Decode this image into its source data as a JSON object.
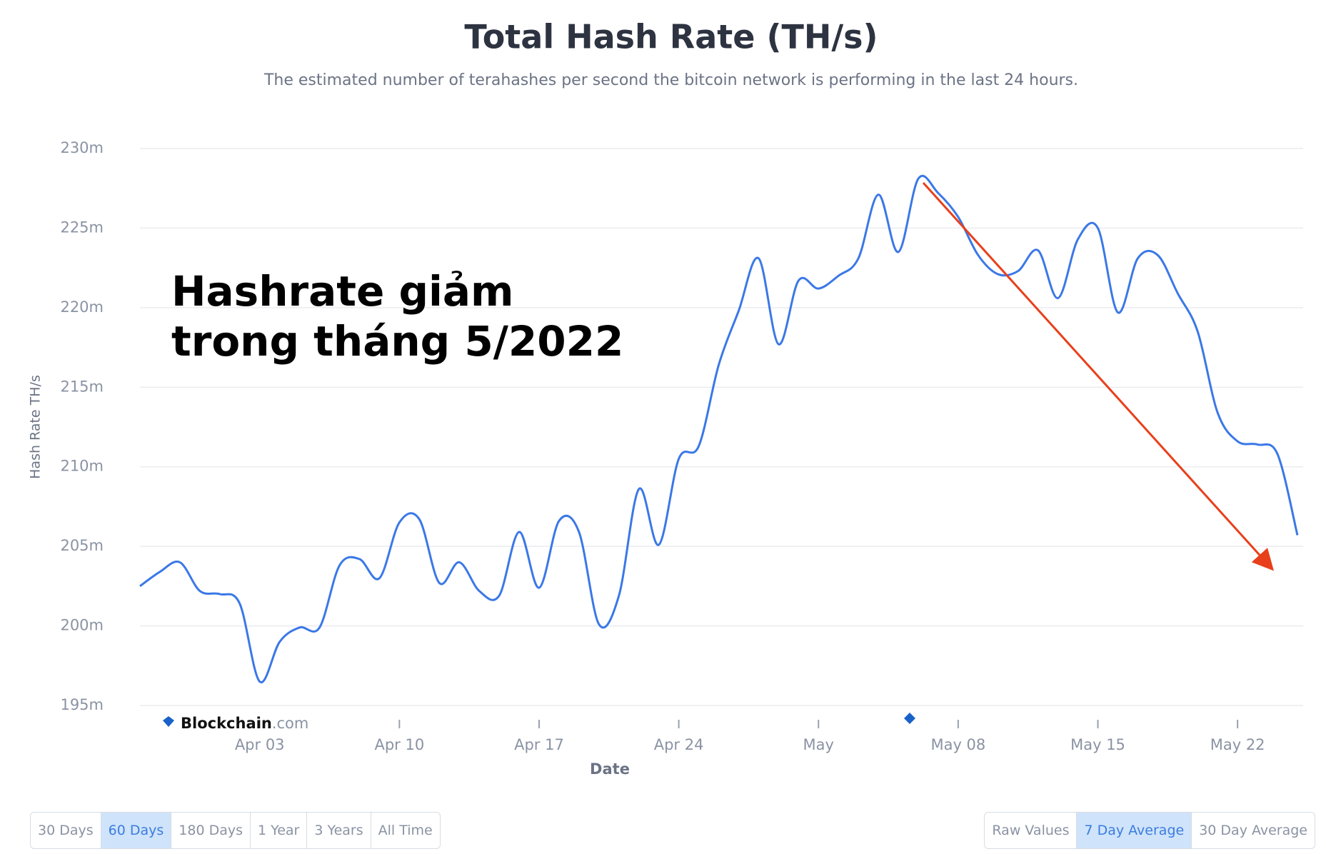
{
  "chart_data": {
    "type": "line",
    "title": "Total Hash Rate (TH/s)",
    "subtitle": "The estimated number of terahashes per second the bitcoin network is performing in the last 24 hours.",
    "y_label": "Hash Rate TH/s",
    "x_label": "Date",
    "annotation": [
      "Hashrate giảm",
      "trong tháng 5/2022"
    ],
    "watermark": {
      "brand": "Blockchain",
      "suffix": ".com"
    },
    "x": [
      "Mar 28",
      "Mar 29",
      "Mar 30",
      "Mar 31",
      "Apr 01",
      "Apr 02",
      "Apr 03",
      "Apr 04",
      "Apr 05",
      "Apr 06",
      "Apr 07",
      "Apr 08",
      "Apr 09",
      "Apr 10",
      "Apr 11",
      "Apr 12",
      "Apr 13",
      "Apr 14",
      "Apr 15",
      "Apr 16",
      "Apr 17",
      "Apr 18",
      "Apr 19",
      "Apr 20",
      "Apr 21",
      "Apr 22",
      "Apr 23",
      "Apr 24",
      "Apr 25",
      "Apr 26",
      "Apr 27",
      "Apr 28",
      "Apr 29",
      "Apr 30",
      "May 01",
      "May 02",
      "May 03",
      "May 04",
      "May 05",
      "May 06",
      "May 07",
      "May 08",
      "May 09",
      "May 10",
      "May 11",
      "May 12",
      "May 13",
      "May 14",
      "May 15",
      "May 16",
      "May 17",
      "May 18",
      "May 19",
      "May 20",
      "May 21",
      "May 22",
      "May 23",
      "May 24",
      "May 25"
    ],
    "series": [
      {
        "name": "Hash Rate",
        "color": "#3b78e7",
        "values": [
          202.5,
          203.4,
          204.0,
          202.2,
          202.0,
          201.4,
          196.5,
          199.0,
          199.9,
          199.9,
          203.8,
          204.2,
          203.0,
          206.5,
          206.7,
          202.7,
          204.0,
          202.2,
          201.9,
          205.9,
          202.4,
          206.6,
          205.9,
          200.1,
          201.9,
          208.6,
          205.1,
          210.5,
          211.3,
          216.4,
          219.8,
          223.1,
          217.7,
          221.7,
          221.2,
          222.0,
          223.1,
          227.1,
          223.5,
          228.1,
          227.2,
          225.7,
          223.3,
          222.1,
          222.3,
          223.6,
          220.6,
          224.3,
          225.0,
          219.7,
          223.1,
          223.3,
          220.9,
          218.5,
          213.4,
          211.6,
          211.4,
          210.8,
          205.7
        ]
      }
    ],
    "xlim": [
      "Mar 28",
      "May 25"
    ],
    "xticks": [
      {
        "value": "Apr 03",
        "label": "Apr 03"
      },
      {
        "value": "Apr 10",
        "label": "Apr 10"
      },
      {
        "value": "Apr 17",
        "label": "Apr 17"
      },
      {
        "value": "Apr 24",
        "label": "Apr 24"
      },
      {
        "value": "May 01",
        "label": "May"
      },
      {
        "value": "May 08",
        "label": "May 08"
      },
      {
        "value": "May 15",
        "label": "May 15"
      },
      {
        "value": "May 22",
        "label": "May 22"
      }
    ],
    "ylim": [
      195,
      230
    ],
    "yticks": [
      {
        "value": 195,
        "label": "195m"
      },
      {
        "value": 200,
        "label": "200m"
      },
      {
        "value": 205,
        "label": "205m"
      },
      {
        "value": 210,
        "label": "210m"
      },
      {
        "value": 215,
        "label": "215m"
      },
      {
        "value": 220,
        "label": "220m"
      },
      {
        "value": 225,
        "label": "225m"
      },
      {
        "value": 230,
        "label": "230m"
      }
    ],
    "grid": true
  },
  "controls": {
    "ranges": [
      {
        "label": "30 Days",
        "selected": false
      },
      {
        "label": "60 Days",
        "selected": true
      },
      {
        "label": "180 Days",
        "selected": false
      },
      {
        "label": "1 Year",
        "selected": false
      },
      {
        "label": "3 Years",
        "selected": false
      },
      {
        "label": "All Time",
        "selected": false
      }
    ],
    "averages": [
      {
        "label": "Raw Values",
        "selected": false
      },
      {
        "label": "7 Day Average",
        "selected": true
      },
      {
        "label": "30 Day Average",
        "selected": false
      }
    ]
  }
}
